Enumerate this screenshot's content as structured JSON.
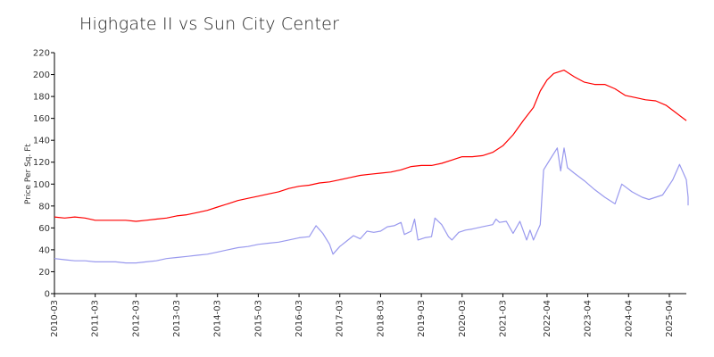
{
  "chart_data": {
    "type": "line",
    "title": "Highgate II vs Sun City Center",
    "ylabel": "Price Per Sq. Ft",
    "xlabel": "",
    "ylim": [
      0,
      220
    ],
    "yticks": [
      0,
      20,
      40,
      60,
      80,
      100,
      120,
      140,
      160,
      180,
      200,
      220
    ],
    "xlim": [
      "2010-03",
      "2025-09"
    ],
    "xticks": [
      "2010-03",
      "2011-03",
      "2012-03",
      "2013-03",
      "2014-03",
      "2015-03",
      "2016-03",
      "2017-03",
      "2018-03",
      "2019-03",
      "2020-03",
      "2021-03",
      "2022-04",
      "2023-04",
      "2024-04",
      "2025-04"
    ],
    "grid": false,
    "series": [
      {
        "color": "#ff0000",
        "points": [
          [
            "2010-03",
            70
          ],
          [
            "2010-06",
            69
          ],
          [
            "2010-09",
            70
          ],
          [
            "2010-12",
            69
          ],
          [
            "2011-03",
            67
          ],
          [
            "2011-06",
            67
          ],
          [
            "2011-09",
            67
          ],
          [
            "2011-12",
            67
          ],
          [
            "2012-03",
            66
          ],
          [
            "2012-06",
            67
          ],
          [
            "2012-09",
            68
          ],
          [
            "2012-12",
            69
          ],
          [
            "2013-03",
            71
          ],
          [
            "2013-06",
            72
          ],
          [
            "2013-09",
            74
          ],
          [
            "2013-12",
            76
          ],
          [
            "2014-03",
            79
          ],
          [
            "2014-06",
            82
          ],
          [
            "2014-09",
            85
          ],
          [
            "2014-12",
            87
          ],
          [
            "2015-03",
            89
          ],
          [
            "2015-06",
            91
          ],
          [
            "2015-09",
            93
          ],
          [
            "2015-12",
            96
          ],
          [
            "2016-03",
            98
          ],
          [
            "2016-06",
            99
          ],
          [
            "2016-09",
            101
          ],
          [
            "2016-12",
            102
          ],
          [
            "2017-03",
            104
          ],
          [
            "2017-06",
            106
          ],
          [
            "2017-09",
            108
          ],
          [
            "2017-12",
            109
          ],
          [
            "2018-03",
            110
          ],
          [
            "2018-06",
            111
          ],
          [
            "2018-09",
            113
          ],
          [
            "2018-12",
            116
          ],
          [
            "2019-03",
            117
          ],
          [
            "2019-06",
            117
          ],
          [
            "2019-09",
            119
          ],
          [
            "2019-12",
            122
          ],
          [
            "2020-03",
            125
          ],
          [
            "2020-06",
            125
          ],
          [
            "2020-09",
            126
          ],
          [
            "2020-12",
            129
          ],
          [
            "2021-03",
            135
          ],
          [
            "2021-06",
            145
          ],
          [
            "2021-09",
            158
          ],
          [
            "2021-12",
            170
          ],
          [
            "2022-02",
            185
          ],
          [
            "2022-04",
            195
          ],
          [
            "2022-06",
            201
          ],
          [
            "2022-09",
            204
          ],
          [
            "2022-12",
            198
          ],
          [
            "2023-03",
            193
          ],
          [
            "2023-06",
            191
          ],
          [
            "2023-09",
            191
          ],
          [
            "2023-12",
            187
          ],
          [
            "2024-03",
            181
          ],
          [
            "2024-06",
            179
          ],
          [
            "2024-09",
            177
          ],
          [
            "2024-12",
            176
          ],
          [
            "2025-03",
            172
          ],
          [
            "2025-06",
            165
          ],
          [
            "2025-09",
            158
          ]
        ]
      },
      {
        "color": "#9999ee",
        "points": [
          [
            "2010-03",
            32
          ],
          [
            "2010-06",
            31
          ],
          [
            "2010-09",
            30
          ],
          [
            "2010-12",
            30
          ],
          [
            "2011-03",
            29
          ],
          [
            "2011-06",
            29
          ],
          [
            "2011-09",
            29
          ],
          [
            "2011-12",
            28
          ],
          [
            "2012-03",
            28
          ],
          [
            "2012-06",
            29
          ],
          [
            "2012-09",
            30
          ],
          [
            "2012-12",
            32
          ],
          [
            "2013-03",
            33
          ],
          [
            "2013-06",
            34
          ],
          [
            "2013-09",
            35
          ],
          [
            "2013-12",
            36
          ],
          [
            "2014-03",
            38
          ],
          [
            "2014-06",
            40
          ],
          [
            "2014-09",
            42
          ],
          [
            "2014-12",
            43
          ],
          [
            "2015-03",
            45
          ],
          [
            "2015-06",
            46
          ],
          [
            "2015-09",
            47
          ],
          [
            "2015-12",
            49
          ],
          [
            "2016-03",
            51
          ],
          [
            "2016-06",
            52
          ],
          [
            "2016-08",
            62
          ],
          [
            "2016-10",
            55
          ],
          [
            "2016-12",
            45
          ],
          [
            "2017-01",
            36
          ],
          [
            "2017-03",
            43
          ],
          [
            "2017-05",
            48
          ],
          [
            "2017-07",
            53
          ],
          [
            "2017-09",
            50
          ],
          [
            "2017-11",
            57
          ],
          [
            "2018-01",
            56
          ],
          [
            "2018-03",
            57
          ],
          [
            "2018-05",
            61
          ],
          [
            "2018-07",
            62
          ],
          [
            "2018-09",
            65
          ],
          [
            "2018-10",
            54
          ],
          [
            "2018-12",
            57
          ],
          [
            "2019-01",
            68
          ],
          [
            "2019-02",
            49
          ],
          [
            "2019-04",
            51
          ],
          [
            "2019-06",
            52
          ],
          [
            "2019-07",
            69
          ],
          [
            "2019-09",
            63
          ],
          [
            "2019-11",
            52
          ],
          [
            "2019-12",
            49
          ],
          [
            "2020-02",
            56
          ],
          [
            "2020-04",
            58
          ],
          [
            "2020-06",
            59
          ],
          [
            "2020-09",
            61
          ],
          [
            "2020-12",
            63
          ],
          [
            "2021-01",
            68
          ],
          [
            "2021-02",
            65
          ],
          [
            "2021-04",
            66
          ],
          [
            "2021-06",
            55
          ],
          [
            "2021-08",
            66
          ],
          [
            "2021-10",
            49
          ],
          [
            "2021-11",
            58
          ],
          [
            "2021-12",
            49
          ],
          [
            "2022-02",
            63
          ],
          [
            "2022-03",
            113
          ],
          [
            "2022-05",
            123
          ],
          [
            "2022-07",
            133
          ],
          [
            "2022-08",
            112
          ],
          [
            "2022-09",
            133
          ],
          [
            "2022-10",
            115
          ],
          [
            "2022-12",
            110
          ],
          [
            "2023-03",
            103
          ],
          [
            "2023-06",
            95
          ],
          [
            "2023-09",
            88
          ],
          [
            "2023-12",
            82
          ],
          [
            "2024-02",
            100
          ],
          [
            "2024-05",
            93
          ],
          [
            "2024-08",
            88
          ],
          [
            "2024-10",
            86
          ],
          [
            "2024-12",
            88
          ],
          [
            "2025-02",
            90
          ],
          [
            "2025-05",
            104
          ],
          [
            "2025-07",
            118
          ],
          [
            "2025-09",
            104
          ],
          [
            "2025-11",
            88
          ],
          [
            "2025-12",
            81
          ],
          [
            "2026-02",
            83
          ]
        ]
      }
    ]
  }
}
